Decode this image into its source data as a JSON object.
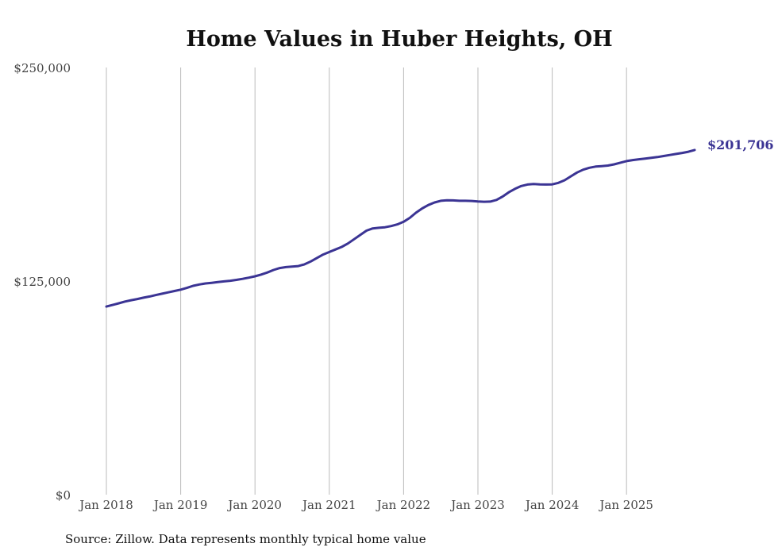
{
  "chart_data": {
    "type": "line",
    "title": "Home Values in Huber Heights, OH",
    "source": "Source: Zillow. Data represents monthly typical home value",
    "xlabel": "",
    "ylabel": "",
    "ylim": [
      0,
      250000
    ],
    "yticks": [
      {
        "value": 0,
        "label": "$0"
      },
      {
        "value": 125000,
        "label": "$125,000"
      },
      {
        "value": 250000,
        "label": "$250,000"
      }
    ],
    "xticks": [
      "Jan 2018",
      "Jan 2019",
      "Jan 2020",
      "Jan 2021",
      "Jan 2022",
      "Jan 2023",
      "Jan 2024",
      "Jan 2025"
    ],
    "x_start": "Jan 2018",
    "x_frequency": "monthly",
    "grid": "vertical",
    "line_color": "#3b3494",
    "end_label": "$201,706",
    "series": [
      {
        "name": "Typical home value",
        "values": [
          110100,
          111000,
          112000,
          113000,
          113800,
          114500,
          115300,
          116000,
          116800,
          117600,
          118400,
          119200,
          120000,
          121000,
          122200,
          123000,
          123600,
          124000,
          124400,
          124800,
          125200,
          125700,
          126300,
          127000,
          127800,
          128800,
          130000,
          131500,
          132600,
          133200,
          133500,
          133800,
          134800,
          136500,
          138500,
          140500,
          142000,
          143500,
          145000,
          147000,
          149500,
          152000,
          154500,
          155800,
          156200,
          156500,
          157200,
          158200,
          159700,
          162000,
          165000,
          167500,
          169500,
          171000,
          172000,
          172300,
          172200,
          172000,
          172000,
          171900,
          171600,
          171400,
          171500,
          172500,
          174500,
          177000,
          179000,
          180600,
          181500,
          181800,
          181600,
          181500,
          181600,
          182500,
          184000,
          186300,
          188500,
          190200,
          191300,
          192000,
          192300,
          192600,
          193300,
          194300,
          195200,
          195800,
          196300,
          196700,
          197100,
          197600,
          198200,
          198800,
          199400,
          200000,
          200700,
          201706
        ]
      }
    ]
  }
}
